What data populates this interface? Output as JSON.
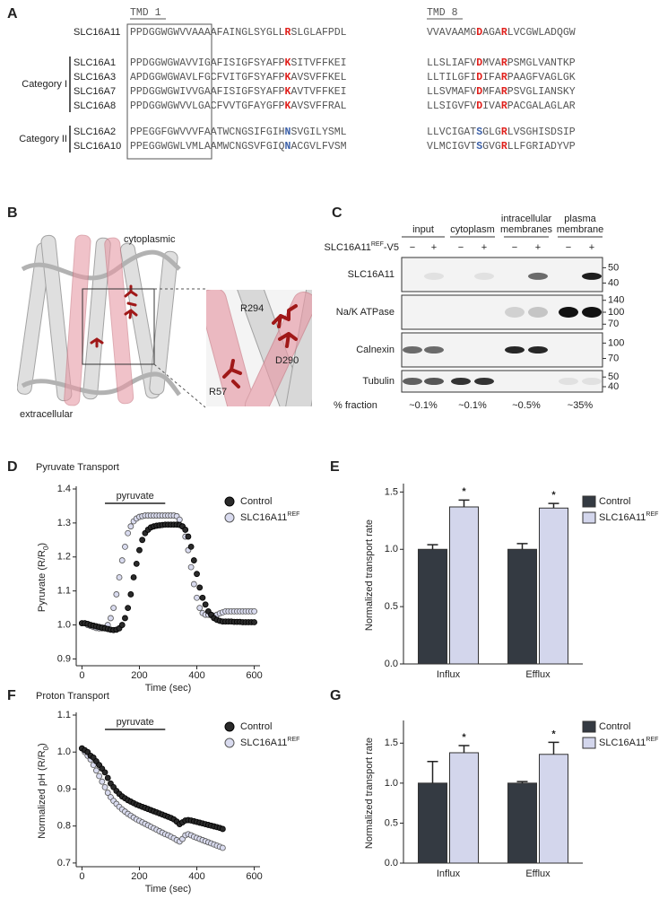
{
  "panel_a": {
    "label": "A",
    "tmd_labels": [
      "TMD 1",
      "TMD 8"
    ],
    "reference": {
      "name": "SLC16A11",
      "tmd1": [
        "PPDGGWGWVVAAAAFAINGLSYGLL",
        {
          "text": "R",
          "color": "#e0201c"
        },
        "SLGLAFPDL"
      ],
      "tmd8": [
        "VVAVAAMG",
        {
          "text": "D",
          "color": "#e0201c"
        },
        "AGA",
        {
          "text": "R",
          "color": "#e0201c"
        },
        "LVCGWLADQGW"
      ]
    },
    "categories": [
      {
        "label": "Category I",
        "rows": [
          {
            "name": "SLC16A1",
            "tmd1": [
              "PPDGGWGWAVVIGAFISIGFSYAFP",
              {
                "text": "K",
                "color": "#e0201c"
              },
              "SITVFFKEI"
            ],
            "tmd8": [
              "LLSLIAFV",
              {
                "text": "D",
                "color": "#e0201c"
              },
              "MVA",
              {
                "text": "R",
                "color": "#e0201c"
              },
              "PSMGLVANTKP"
            ]
          },
          {
            "name": "SLC16A3",
            "tmd1": [
              "APDGGWGWAVLFGCFVITGFSYAFP",
              {
                "text": "K",
                "color": "#e0201c"
              },
              "AVSVFFKEL"
            ],
            "tmd8": [
              "LLTILGFI",
              {
                "text": "D",
                "color": "#e0201c"
              },
              "IFA",
              {
                "text": "R",
                "color": "#e0201c"
              },
              "PAAGFVAGLGK"
            ]
          },
          {
            "name": "SLC16A7",
            "tmd1": [
              "PPDGGWGWIVVGAAFISIGFSYAFP",
              {
                "text": "K",
                "color": "#e0201c"
              },
              "AVTVFFKEI"
            ],
            "tmd8": [
              "LLSVMAFV",
              {
                "text": "D",
                "color": "#e0201c"
              },
              "MFA",
              {
                "text": "R",
                "color": "#e0201c"
              },
              "PSVGLIANSKY"
            ]
          },
          {
            "name": "SLC16A8",
            "tmd1": [
              "PPDGGWGWVVLGACFVVTGFAYGFP",
              {
                "text": "K",
                "color": "#e0201c"
              },
              "AVSVFFRAL"
            ],
            "tmd8": [
              "LLSIGVFV",
              {
                "text": "D",
                "color": "#e0201c"
              },
              "IVA",
              {
                "text": "R",
                "color": "#e0201c"
              },
              "PACGALAGLAR"
            ]
          }
        ]
      },
      {
        "label": "Category II",
        "rows": [
          {
            "name": "SLC16A2",
            "tmd1": [
              "PPEGGFGWVVVFAATWCNGSIFGIH",
              {
                "text": "N",
                "color": "#3a5fa8"
              },
              "SVGILYSML"
            ],
            "tmd8": [
              "LLVCIGAT",
              {
                "text": "S",
                "color": "#3a5fa8"
              },
              "GLG",
              {
                "text": "R",
                "color": "#e0201c"
              },
              "LVSGHISDSIP"
            ]
          },
          {
            "name": "SLC16A10",
            "tmd1": [
              "PPEGGWGWLVMLAAMWCNGSVFGIQ",
              {
                "text": "N",
                "color": "#3a5fa8"
              },
              "ACGVLFVSM"
            ],
            "tmd8": [
              "VLMCIGVT",
              {
                "text": "S",
                "color": "#3a5fa8"
              },
              "GVG",
              {
                "text": "R",
                "color": "#e0201c"
              },
              "LLFGRIADYVP"
            ]
          }
        ]
      }
    ]
  },
  "panel_b": {
    "label": "B",
    "regions": [
      "cytoplasmic",
      "extracellular"
    ],
    "residues": [
      "R294",
      "D290",
      "R57"
    ]
  },
  "panel_c": {
    "label": "C",
    "construct": "SLC16A11",
    "construct_superscript": "REF",
    "construct_suffix": "-V5",
    "conditions": [
      "−",
      "+"
    ],
    "fractions": [
      {
        "name": [
          "input"
        ],
        "percent": "~0.1%"
      },
      {
        "name": [
          "cytoplasm"
        ],
        "percent": "~0.1%"
      },
      {
        "name": [
          "intracellular",
          "membranes"
        ],
        "percent": "~0.5%"
      },
      {
        "name": [
          "plasma",
          "membrane"
        ],
        "percent": "~35%"
      }
    ],
    "fraction_label": "% fraction",
    "blots": [
      {
        "name": "SLC16A11",
        "mw": [
          50,
          40
        ],
        "band_intensity": [
          0,
          0.08,
          0,
          0.08,
          0,
          0.6,
          0,
          0.95
        ]
      },
      {
        "name": "Na/K ATPase",
        "mw": [
          140,
          100,
          70
        ],
        "band_intensity": [
          0,
          0,
          0,
          0,
          0.15,
          0.2,
          1,
          1
        ]
      },
      {
        "name": "Calnexin",
        "mw": [
          100,
          70
        ],
        "band_intensity": [
          0.6,
          0.6,
          0,
          0,
          0.9,
          0.9,
          0,
          0
        ]
      },
      {
        "name": "Tubulin",
        "mw": [
          50,
          40
        ],
        "band_intensity": [
          0.65,
          0.7,
          0.85,
          0.85,
          0,
          0,
          0.08,
          0.08
        ]
      }
    ]
  },
  "chart_data": [
    {
      "type": "scatter",
      "panel": "D",
      "title": "Pyruvate Transport",
      "xlabel": "Time (sec)",
      "ylabel": "Pyruvate (R/R",
      "ylabel_subscript": "0",
      "ylabel_suffix": ")",
      "x": [
        0,
        10,
        20,
        30,
        40,
        50,
        60,
        70,
        80,
        90,
        100,
        110,
        120,
        130,
        140,
        150,
        160,
        170,
        180,
        190,
        200,
        210,
        220,
        230,
        240,
        250,
        260,
        270,
        280,
        290,
        300,
        310,
        320,
        330,
        340,
        350,
        360,
        370,
        380,
        390,
        400,
        410,
        420,
        430,
        440,
        450,
        460,
        470,
        480,
        490,
        500,
        510,
        520,
        530,
        540,
        550,
        560,
        570,
        580,
        590,
        600
      ],
      "series": [
        {
          "name": "Control",
          "color": "#2a2a2a",
          "values": [
            1.005,
            1.005,
            1.003,
            1.0,
            0.998,
            0.996,
            0.994,
            0.992,
            0.99,
            0.988,
            0.986,
            0.985,
            0.986,
            0.99,
            1.0,
            1.02,
            1.05,
            1.09,
            1.14,
            1.18,
            1.22,
            1.25,
            1.27,
            1.28,
            1.287,
            1.29,
            1.292,
            1.293,
            1.294,
            1.295,
            1.295,
            1.295,
            1.295,
            1.295,
            1.294,
            1.29,
            1.28,
            1.26,
            1.23,
            1.19,
            1.15,
            1.11,
            1.08,
            1.06,
            1.04,
            1.03,
            1.02,
            1.015,
            1.012,
            1.01,
            1.01,
            1.01,
            1.01,
            1.009,
            1.009,
            1.009,
            1.008,
            1.008,
            1.008,
            1.008,
            1.008
          ]
        },
        {
          "name": "SLC16A11",
          "name_superscript": "REF",
          "color": "#d9dbef",
          "hollow": true,
          "values": [
            1.005,
            1.005,
            1.0,
            0.997,
            0.994,
            0.991,
            0.99,
            0.99,
            0.992,
            1.0,
            1.02,
            1.05,
            1.09,
            1.14,
            1.19,
            1.23,
            1.27,
            1.29,
            1.305,
            1.313,
            1.318,
            1.32,
            1.322,
            1.322,
            1.322,
            1.322,
            1.322,
            1.322,
            1.322,
            1.322,
            1.322,
            1.322,
            1.322,
            1.32,
            1.31,
            1.29,
            1.26,
            1.22,
            1.17,
            1.12,
            1.08,
            1.05,
            1.035,
            1.03,
            1.03,
            1.028,
            1.027,
            1.03,
            1.034,
            1.037,
            1.04,
            1.04,
            1.04,
            1.04,
            1.04,
            1.04,
            1.04,
            1.04,
            1.04,
            1.04,
            1.04
          ]
        }
      ],
      "annotation": {
        "text": "pyruvate",
        "start": 80,
        "end": 290
      },
      "xlim": [
        -20,
        620
      ],
      "xticks": [
        0,
        200,
        400,
        600
      ],
      "ylim": [
        0.88,
        1.4
      ],
      "yticks": [
        0.9,
        {
          "value": 1,
          "label": "1.0"
        },
        1.1,
        1.2,
        1.3,
        1.4
      ]
    },
    {
      "type": "bar",
      "panel": "E",
      "ylabel": "Normalized transport rate",
      "categories": [
        "Influx",
        "Efflux"
      ],
      "series": [
        {
          "name": "Control",
          "color": "#343a42",
          "values": [
            1.0,
            1.0
          ],
          "errors": [
            0.04,
            0.05
          ]
        },
        {
          "name": "SLC16A11",
          "name_superscript": "REF",
          "color": "#d3d6ec",
          "values": [
            1.37,
            1.36
          ],
          "errors": [
            0.06,
            0.04
          ]
        }
      ],
      "significance": [
        "*",
        "*"
      ],
      "ylim": [
        0,
        1.55
      ],
      "yticks": [
        {
          "value": 0,
          "label": "0.0"
        },
        0.5,
        {
          "value": 1,
          "label": "1.0"
        },
        1.5
      ]
    },
    {
      "type": "scatter",
      "panel": "F",
      "title": "Proton Transport",
      "xlabel": "Time (sec)",
      "ylabel": "Normalized pH (R/R",
      "ylabel_subscript": "0",
      "ylabel_suffix": ")",
      "x": [
        0,
        10,
        20,
        30,
        40,
        50,
        60,
        70,
        80,
        90,
        100,
        110,
        120,
        130,
        140,
        150,
        160,
        170,
        180,
        190,
        200,
        210,
        220,
        230,
        240,
        250,
        260,
        270,
        280,
        290,
        300,
        310,
        320,
        330,
        340,
        350,
        360,
        370,
        380,
        390,
        400,
        410,
        420,
        430,
        440,
        450,
        460,
        470,
        480,
        490
      ],
      "series": [
        {
          "name": "Control",
          "color": "#2a2a2a",
          "values": [
            1.01,
            1.005,
            1.0,
            0.99,
            0.985,
            0.975,
            0.965,
            0.955,
            0.945,
            0.93,
            0.915,
            0.905,
            0.895,
            0.887,
            0.88,
            0.875,
            0.87,
            0.866,
            0.862,
            0.858,
            0.855,
            0.852,
            0.849,
            0.846,
            0.843,
            0.84,
            0.837,
            0.834,
            0.831,
            0.828,
            0.825,
            0.822,
            0.818,
            0.812,
            0.805,
            0.81,
            0.815,
            0.816,
            0.815,
            0.813,
            0.811,
            0.809,
            0.807,
            0.805,
            0.803,
            0.801,
            0.799,
            0.797,
            0.795,
            0.792
          ]
        },
        {
          "name": "SLC16A11",
          "name_superscript": "REF",
          "color": "#d9dbef",
          "hollow": true,
          "values": [
            1.01,
            1.0,
            0.99,
            0.98,
            0.965,
            0.95,
            0.935,
            0.92,
            0.905,
            0.89,
            0.878,
            0.868,
            0.86,
            0.852,
            0.845,
            0.839,
            0.833,
            0.828,
            0.823,
            0.818,
            0.814,
            0.81,
            0.806,
            0.802,
            0.798,
            0.794,
            0.79,
            0.786,
            0.782,
            0.778,
            0.775,
            0.771,
            0.767,
            0.762,
            0.758,
            0.765,
            0.775,
            0.778,
            0.775,
            0.771,
            0.768,
            0.765,
            0.762,
            0.759,
            0.756,
            0.753,
            0.75,
            0.747,
            0.744,
            0.741
          ]
        }
      ],
      "annotation": {
        "text": "pyruvate",
        "start": 80,
        "end": 290
      },
      "xlim": [
        -20,
        620
      ],
      "xticks": [
        0,
        200,
        400,
        600
      ],
      "ylim": [
        0.69,
        1.1
      ],
      "yticks": [
        0.7,
        0.8,
        0.9,
        {
          "value": 1,
          "label": "1.0"
        },
        1.1
      ]
    },
    {
      "type": "bar",
      "panel": "G",
      "ylabel": "Normalized transport rate",
      "categories": [
        "Influx",
        "Efflux"
      ],
      "series": [
        {
          "name": "Control",
          "color": "#343a42",
          "values": [
            1.0,
            1.0
          ],
          "errors": [
            0.27,
            0.02
          ]
        },
        {
          "name": "SLC16A11",
          "name_superscript": "REF",
          "color": "#d3d6ec",
          "values": [
            1.38,
            1.36
          ],
          "errors": [
            0.09,
            0.15
          ]
        }
      ],
      "significance": [
        "*",
        "*"
      ],
      "ylim": [
        0,
        1.75
      ],
      "yticks": [
        {
          "value": 0,
          "label": "0.0"
        },
        0.5,
        {
          "value": 1,
          "label": "1.0"
        },
        1.5
      ]
    }
  ]
}
